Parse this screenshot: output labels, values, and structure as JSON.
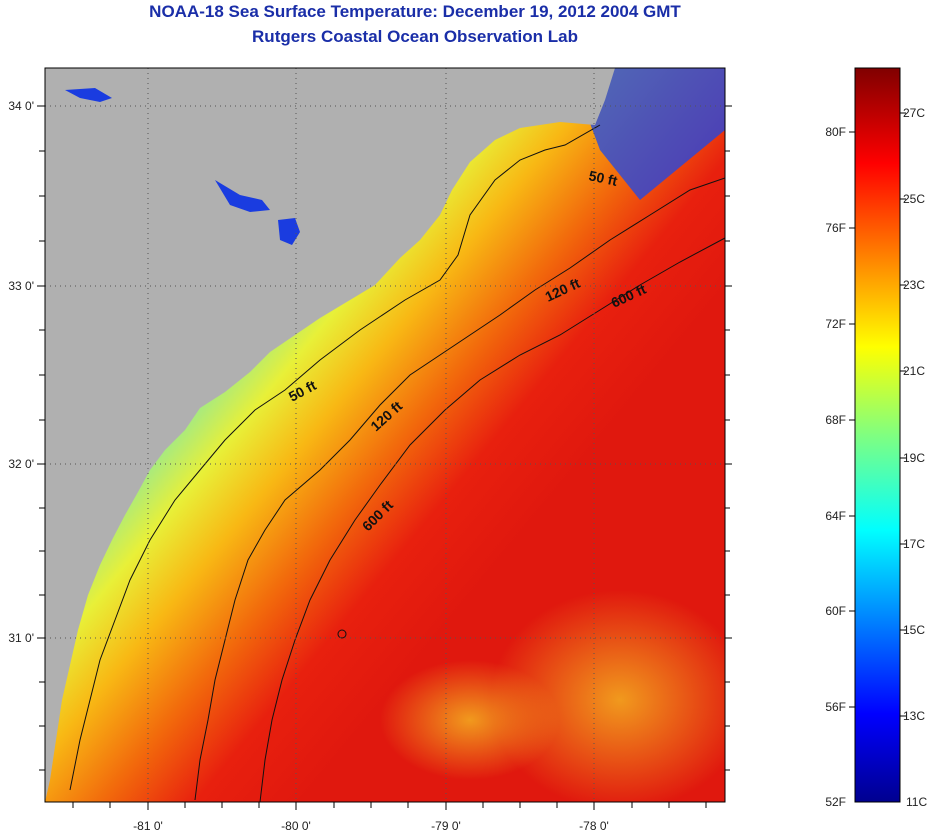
{
  "header": {
    "title": "NOAA-18 Sea Surface Temperature:  December 19, 2012 2004 GMT",
    "subtitle": "Rutgers Coastal Ocean Observation Lab"
  },
  "map": {
    "longitude_labels": [
      "-81 0'",
      "-80 0'",
      "-79 0'",
      "-78 0'"
    ],
    "latitude_labels": [
      "34 0'",
      "33 0'",
      "32 0'",
      "31 0'"
    ],
    "contours": [
      {
        "label": "50 ft",
        "depth_ft": 50
      },
      {
        "label": "120 ft",
        "depth_ft": 120
      },
      {
        "label": "600 ft",
        "depth_ft": 600
      }
    ],
    "contour_label_instances": [
      "50 ft",
      "50 ft",
      "120 ft",
      "120 ft",
      "600 ft",
      "600 ft"
    ],
    "colors": {
      "land": "#b0b0b0",
      "cold": "#1a3ce0",
      "cool": "#35d6f0",
      "mid": "#e0f040",
      "warm": "#f5a810",
      "hot": "#e81e0e"
    }
  },
  "colorbar": {
    "fahrenheit_labels": [
      "80F",
      "76F",
      "72F",
      "68F",
      "64F",
      "60F",
      "56F",
      "52F"
    ],
    "celsius_labels": [
      "27C",
      "25C",
      "23C",
      "21C",
      "19C",
      "17C",
      "15C",
      "13C",
      "11C"
    ],
    "min_label_f": "52F",
    "min_label_c": "11C"
  }
}
